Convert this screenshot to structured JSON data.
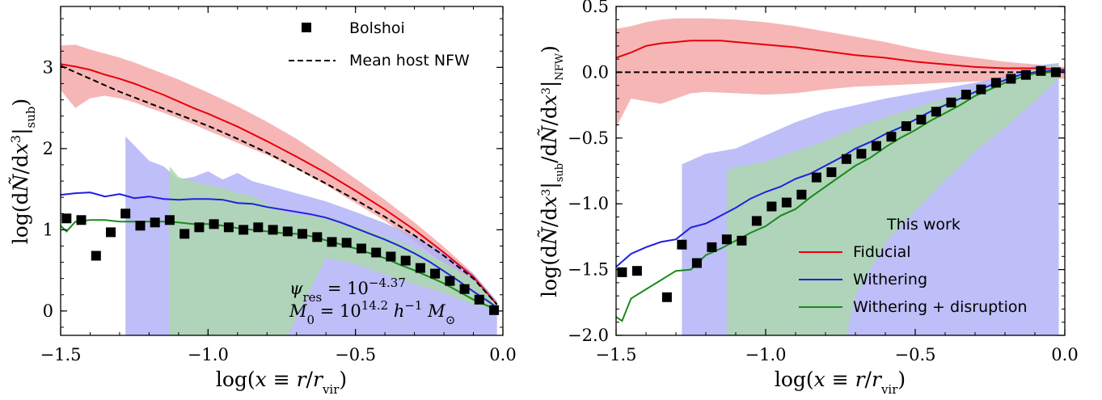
{
  "chart_data": [
    {
      "type": "line",
      "xlabel": "log(x ≡ r/r_vir)",
      "ylabel": "log(dÑ/dx³|sub)",
      "xlim": [
        -1.5,
        0.0
      ],
      "ylim": [
        -0.3,
        3.75
      ],
      "xticks": [
        "−1.5",
        "−1.0",
        "−0.5",
        "0.0"
      ],
      "yticks": [
        "0",
        "1",
        "2",
        "3"
      ],
      "xtick_values": [
        -1.5,
        -1.0,
        -0.5,
        0.0
      ],
      "ytick_values": [
        0,
        1,
        2,
        3
      ],
      "legend": {
        "placement": "top-right",
        "entries": [
          {
            "label": "Bolshoi",
            "marker": "square",
            "color": "#000000"
          },
          {
            "label": "Mean host NFW",
            "style": "dashed",
            "color": "#000000"
          }
        ]
      },
      "annotations": [
        "ψres = 10^−4.37",
        "M0 = 10^14.2 h^−1 M⊙"
      ],
      "bands": [
        {
          "color": "#f4a6a6",
          "x": [
            -1.5,
            -1.45,
            -1.4,
            -1.35,
            -1.3,
            -1.25,
            -1.2,
            -1.15,
            -1.1,
            -1.05,
            -1.0,
            -0.9,
            -0.8,
            -0.7,
            -0.6,
            -0.5,
            -0.4,
            -0.3,
            -0.2,
            -0.1,
            -0.02
          ],
          "upper": [
            3.27,
            3.28,
            3.22,
            3.17,
            3.12,
            3.06,
            2.99,
            2.92,
            2.85,
            2.77,
            2.69,
            2.52,
            2.33,
            2.12,
            1.88,
            1.63,
            1.37,
            1.09,
            0.79,
            0.46,
            0.12
          ],
          "lower": [
            2.72,
            2.5,
            2.62,
            2.65,
            2.62,
            2.57,
            2.5,
            2.44,
            2.37,
            2.3,
            2.22,
            2.07,
            1.92,
            1.75,
            1.55,
            1.33,
            1.11,
            0.86,
            0.58,
            0.28,
            0.04
          ]
        },
        {
          "color": "#b0b0f6",
          "x": [
            -1.28,
            -1.2,
            -1.15,
            -1.1,
            -1.05,
            -1.0,
            -0.95,
            -0.9,
            -0.85,
            -0.8,
            -0.7,
            -0.6,
            -0.5,
            -0.4,
            -0.3,
            -0.2,
            -0.1,
            -0.02
          ],
          "upper": [
            2.15,
            1.85,
            1.78,
            1.62,
            1.65,
            1.72,
            1.62,
            1.7,
            1.6,
            1.55,
            1.45,
            1.35,
            1.22,
            1.08,
            0.92,
            0.73,
            0.46,
            0.12
          ],
          "lower": [
            -0.3,
            -0.3,
            -0.3,
            -0.3,
            -0.3,
            -0.3,
            -0.3,
            -0.3,
            -0.3,
            -0.3,
            -0.3,
            -0.3,
            -0.3,
            -0.3,
            -0.3,
            -0.3,
            -0.3,
            -0.3
          ]
        },
        {
          "color": "#acd9ac",
          "x": [
            -1.13,
            -1.1,
            -1.05,
            -1.0,
            -0.95,
            -0.9,
            -0.85,
            -0.8,
            -0.75,
            -0.73,
            -0.6,
            -0.5,
            -0.4,
            -0.3,
            -0.2,
            -0.1,
            -0.02
          ],
          "upper": [
            1.78,
            1.65,
            1.6,
            1.55,
            1.52,
            1.45,
            1.42,
            1.32,
            1.25,
            1.2,
            1.15,
            1.05,
            0.92,
            0.78,
            0.6,
            0.38,
            0.1
          ],
          "lower": [
            -0.3,
            -0.3,
            -0.3,
            -0.3,
            -0.3,
            -0.3,
            -0.3,
            -0.3,
            -0.3,
            -0.3,
            0.65,
            0.58,
            0.45,
            0.33,
            0.22,
            0.08,
            0.02
          ]
        }
      ],
      "series": [
        {
          "color": "#e8000b",
          "style": "solid",
          "x": [
            -1.5,
            -1.45,
            -1.4,
            -1.35,
            -1.3,
            -1.25,
            -1.2,
            -1.15,
            -1.1,
            -1.05,
            -1.0,
            -0.9,
            -0.8,
            -0.7,
            -0.6,
            -0.5,
            -0.4,
            -0.3,
            -0.2,
            -0.1,
            -0.02
          ],
          "y": [
            3.04,
            3.01,
            2.97,
            2.91,
            2.86,
            2.8,
            2.73,
            2.66,
            2.58,
            2.5,
            2.43,
            2.27,
            2.09,
            1.9,
            1.7,
            1.48,
            1.25,
            1.0,
            0.72,
            0.42,
            0.08
          ]
        },
        {
          "color": "#000000",
          "style": "dashed",
          "x": [
            -1.5,
            -1.45,
            -1.4,
            -1.35,
            -1.3,
            -1.25,
            -1.2,
            -1.15,
            -1.1,
            -1.05,
            -1.0,
            -0.9,
            -0.8,
            -0.7,
            -0.6,
            -0.5,
            -0.4,
            -0.3,
            -0.2,
            -0.1,
            -0.02
          ],
          "y": [
            3.02,
            2.94,
            2.86,
            2.78,
            2.7,
            2.63,
            2.56,
            2.49,
            2.42,
            2.35,
            2.28,
            2.12,
            1.95,
            1.76,
            1.57,
            1.37,
            1.16,
            0.93,
            0.68,
            0.4,
            0.08
          ]
        },
        {
          "color": "#1f1fe0",
          "style": "solid",
          "x": [
            -1.5,
            -1.45,
            -1.4,
            -1.35,
            -1.3,
            -1.25,
            -1.2,
            -1.15,
            -1.1,
            -1.05,
            -1.0,
            -0.95,
            -0.9,
            -0.85,
            -0.8,
            -0.75,
            -0.7,
            -0.65,
            -0.6,
            -0.55,
            -0.5,
            -0.45,
            -0.4,
            -0.35,
            -0.3,
            -0.25,
            -0.2,
            -0.15,
            -0.1,
            -0.05,
            -0.02
          ],
          "y": [
            1.43,
            1.45,
            1.46,
            1.41,
            1.44,
            1.39,
            1.41,
            1.38,
            1.37,
            1.38,
            1.38,
            1.37,
            1.33,
            1.32,
            1.28,
            1.25,
            1.22,
            1.19,
            1.15,
            1.09,
            1.02,
            0.95,
            0.88,
            0.8,
            0.71,
            0.61,
            0.49,
            0.37,
            0.24,
            0.12,
            0.04
          ]
        },
        {
          "color": "#1a8a1a",
          "style": "solid",
          "x": [
            -1.5,
            -1.48,
            -1.45,
            -1.4,
            -1.35,
            -1.3,
            -1.25,
            -1.2,
            -1.15,
            -1.1,
            -1.05,
            -1.0,
            -0.95,
            -0.9,
            -0.85,
            -0.8,
            -0.75,
            -0.7,
            -0.65,
            -0.6,
            -0.55,
            -0.5,
            -0.45,
            -0.4,
            -0.35,
            -0.3,
            -0.25,
            -0.2,
            -0.15,
            -0.1,
            -0.05,
            -0.02
          ],
          "y": [
            1.05,
            0.98,
            1.1,
            1.12,
            1.12,
            1.1,
            1.1,
            1.1,
            1.1,
            1.09,
            1.07,
            1.07,
            1.05,
            1.02,
            1.0,
            0.98,
            0.96,
            0.95,
            0.92,
            0.87,
            0.82,
            0.77,
            0.71,
            0.65,
            0.57,
            0.5,
            0.42,
            0.34,
            0.24,
            0.14,
            0.06,
            0.0
          ]
        },
        {
          "color": "#000000",
          "style": "markers",
          "x": [
            -1.48,
            -1.43,
            -1.38,
            -1.33,
            -1.28,
            -1.23,
            -1.18,
            -1.13,
            -1.08,
            -1.03,
            -0.98,
            -0.93,
            -0.88,
            -0.83,
            -0.78,
            -0.73,
            -0.68,
            -0.63,
            -0.58,
            -0.53,
            -0.48,
            -0.43,
            -0.38,
            -0.33,
            -0.28,
            -0.23,
            -0.18,
            -0.13,
            -0.08,
            -0.03
          ],
          "y": [
            1.14,
            1.12,
            0.68,
            0.97,
            1.2,
            1.05,
            1.09,
            1.12,
            0.95,
            1.03,
            1.07,
            1.03,
            1.0,
            1.03,
            1.0,
            0.98,
            0.95,
            0.91,
            0.85,
            0.84,
            0.77,
            0.72,
            0.67,
            0.62,
            0.53,
            0.46,
            0.37,
            0.27,
            0.14,
            0.01
          ]
        }
      ]
    },
    {
      "type": "line",
      "xlabel": "log(x ≡ r/r_vir)",
      "ylabel": "log(dÑ/dx³|sub/dÑ/dx³|NFW)",
      "xlim": [
        -1.5,
        0.0
      ],
      "ylim": [
        -2.0,
        0.5
      ],
      "xticks": [
        "−1.5",
        "−1.0",
        "−0.5",
        "0.0"
      ],
      "yticks": [
        "−2.0",
        "−1.5",
        "−1.0",
        "−0.5",
        "0.0",
        "0.5"
      ],
      "xtick_values": [
        -1.5,
        -1.0,
        -0.5,
        0.0
      ],
      "ytick_values": [
        -2.0,
        -1.5,
        -1.0,
        -0.5,
        0.0,
        0.5
      ],
      "legend": {
        "placement": "lower-right",
        "title": "This work",
        "entries": [
          {
            "label": "Fiducial",
            "color": "#e8000b"
          },
          {
            "label": "Withering",
            "color": "#1f1fe0"
          },
          {
            "label": "Withering + disruption",
            "color": "#1a8a1a"
          }
        ]
      },
      "bands": [
        {
          "color": "#f4a6a6",
          "x": [
            -1.5,
            -1.45,
            -1.4,
            -1.35,
            -1.3,
            -1.25,
            -1.2,
            -1.1,
            -1.0,
            -0.9,
            -0.8,
            -0.7,
            -0.6,
            -0.5,
            -0.4,
            -0.3,
            -0.2,
            -0.1,
            0.0
          ],
          "upper": [
            0.33,
            0.35,
            0.38,
            0.4,
            0.41,
            0.41,
            0.41,
            0.4,
            0.38,
            0.35,
            0.31,
            0.27,
            0.23,
            0.18,
            0.14,
            0.11,
            0.08,
            0.06,
            0.04
          ],
          "lower": [
            -0.42,
            -0.2,
            -0.22,
            -0.24,
            -0.2,
            -0.16,
            -0.15,
            -0.16,
            -0.17,
            -0.16,
            -0.13,
            -0.11,
            -0.1,
            -0.09,
            -0.08,
            -0.07,
            -0.06,
            -0.05,
            -0.05
          ]
        },
        {
          "color": "#b0b0f6",
          "x": [
            -1.28,
            -1.2,
            -1.1,
            -1.0,
            -0.9,
            -0.8,
            -0.7,
            -0.6,
            -0.5,
            -0.4,
            -0.3,
            -0.2,
            -0.1,
            -0.02
          ],
          "upper": [
            -0.7,
            -0.62,
            -0.58,
            -0.48,
            -0.38,
            -0.3,
            -0.25,
            -0.2,
            -0.16,
            -0.12,
            -0.08,
            -0.03,
            0.05,
            0.07
          ],
          "lower": [
            -2.0,
            -2.0,
            -2.0,
            -2.0,
            -2.0,
            -2.0,
            -2.0,
            -2.0,
            -2.0,
            -2.0,
            -2.0,
            -2.0,
            -2.0,
            -2.0
          ]
        },
        {
          "color": "#acd9ac",
          "x": [
            -1.13,
            -1.1,
            -1.0,
            -0.9,
            -0.8,
            -0.73,
            -0.7,
            -0.6,
            -0.5,
            -0.4,
            -0.3,
            -0.2,
            -0.1,
            -0.02
          ],
          "upper": [
            -0.75,
            -0.72,
            -0.68,
            -0.6,
            -0.52,
            -0.45,
            -0.42,
            -0.34,
            -0.27,
            -0.2,
            -0.13,
            -0.06,
            0.03,
            0.06
          ],
          "lower": [
            -2.0,
            -2.0,
            -2.0,
            -2.0,
            -2.0,
            -2.0,
            -1.7,
            -1.3,
            -1.05,
            -0.82,
            -0.6,
            -0.42,
            -0.22,
            -0.05
          ]
        }
      ],
      "series": [
        {
          "color": "#e8000b",
          "style": "solid",
          "x": [
            -1.5,
            -1.45,
            -1.4,
            -1.35,
            -1.3,
            -1.25,
            -1.2,
            -1.15,
            -1.1,
            -1.05,
            -1.0,
            -0.9,
            -0.8,
            -0.7,
            -0.6,
            -0.5,
            -0.4,
            -0.3,
            -0.2,
            -0.1,
            0.0
          ],
          "y": [
            0.11,
            0.15,
            0.2,
            0.22,
            0.23,
            0.24,
            0.24,
            0.24,
            0.23,
            0.22,
            0.21,
            0.19,
            0.16,
            0.13,
            0.11,
            0.08,
            0.06,
            0.04,
            0.03,
            0.03,
            0.02
          ]
        },
        {
          "color": "#000000",
          "style": "dashed",
          "x": [
            -1.5,
            0.0
          ],
          "y": [
            0.0,
            0.0
          ]
        },
        {
          "color": "#1f1fe0",
          "style": "solid",
          "x": [
            -1.5,
            -1.45,
            -1.4,
            -1.35,
            -1.3,
            -1.25,
            -1.2,
            -1.15,
            -1.1,
            -1.05,
            -1.0,
            -0.95,
            -0.9,
            -0.85,
            -0.8,
            -0.75,
            -0.7,
            -0.65,
            -0.6,
            -0.55,
            -0.5,
            -0.45,
            -0.4,
            -0.35,
            -0.3,
            -0.25,
            -0.2,
            -0.15,
            -0.1,
            -0.05,
            0.0
          ],
          "y": [
            -1.48,
            -1.38,
            -1.33,
            -1.29,
            -1.27,
            -1.18,
            -1.15,
            -1.09,
            -1.03,
            -0.96,
            -0.91,
            -0.87,
            -0.81,
            -0.77,
            -0.71,
            -0.65,
            -0.58,
            -0.53,
            -0.47,
            -0.42,
            -0.36,
            -0.3,
            -0.25,
            -0.2,
            -0.15,
            -0.1,
            -0.06,
            -0.02,
            0.0,
            0.01,
            0.01
          ]
        },
        {
          "color": "#1a8a1a",
          "style": "solid",
          "x": [
            -1.5,
            -1.48,
            -1.45,
            -1.4,
            -1.35,
            -1.3,
            -1.25,
            -1.2,
            -1.15,
            -1.1,
            -1.05,
            -1.0,
            -0.95,
            -0.9,
            -0.85,
            -0.8,
            -0.75,
            -0.7,
            -0.65,
            -0.6,
            -0.55,
            -0.5,
            -0.45,
            -0.4,
            -0.35,
            -0.3,
            -0.25,
            -0.2,
            -0.15,
            -0.1,
            -0.05,
            0.0
          ],
          "y": [
            -1.86,
            -1.89,
            -1.72,
            -1.65,
            -1.58,
            -1.51,
            -1.5,
            -1.39,
            -1.34,
            -1.28,
            -1.22,
            -1.17,
            -1.09,
            -1.04,
            -0.95,
            -0.87,
            -0.79,
            -0.71,
            -0.65,
            -0.57,
            -0.5,
            -0.44,
            -0.37,
            -0.31,
            -0.25,
            -0.18,
            -0.13,
            -0.08,
            -0.04,
            -0.01,
            0.0,
            0.0
          ]
        },
        {
          "color": "#000000",
          "style": "markers",
          "x": [
            -1.48,
            -1.43,
            -1.33,
            -1.28,
            -1.23,
            -1.18,
            -1.13,
            -1.08,
            -1.03,
            -0.98,
            -0.93,
            -0.88,
            -0.83,
            -0.78,
            -0.73,
            -0.68,
            -0.63,
            -0.58,
            -0.53,
            -0.48,
            -0.43,
            -0.38,
            -0.33,
            -0.28,
            -0.23,
            -0.18,
            -0.13,
            -0.08,
            -0.03
          ],
          "y": [
            -1.52,
            -1.51,
            -1.71,
            -1.31,
            -1.45,
            -1.33,
            -1.27,
            -1.28,
            -1.13,
            -1.02,
            -0.99,
            -0.93,
            -0.8,
            -0.76,
            -0.66,
            -0.62,
            -0.56,
            -0.49,
            -0.41,
            -0.36,
            -0.3,
            -0.23,
            -0.17,
            -0.13,
            -0.08,
            -0.05,
            -0.02,
            0.01,
            0.0
          ]
        }
      ]
    }
  ]
}
